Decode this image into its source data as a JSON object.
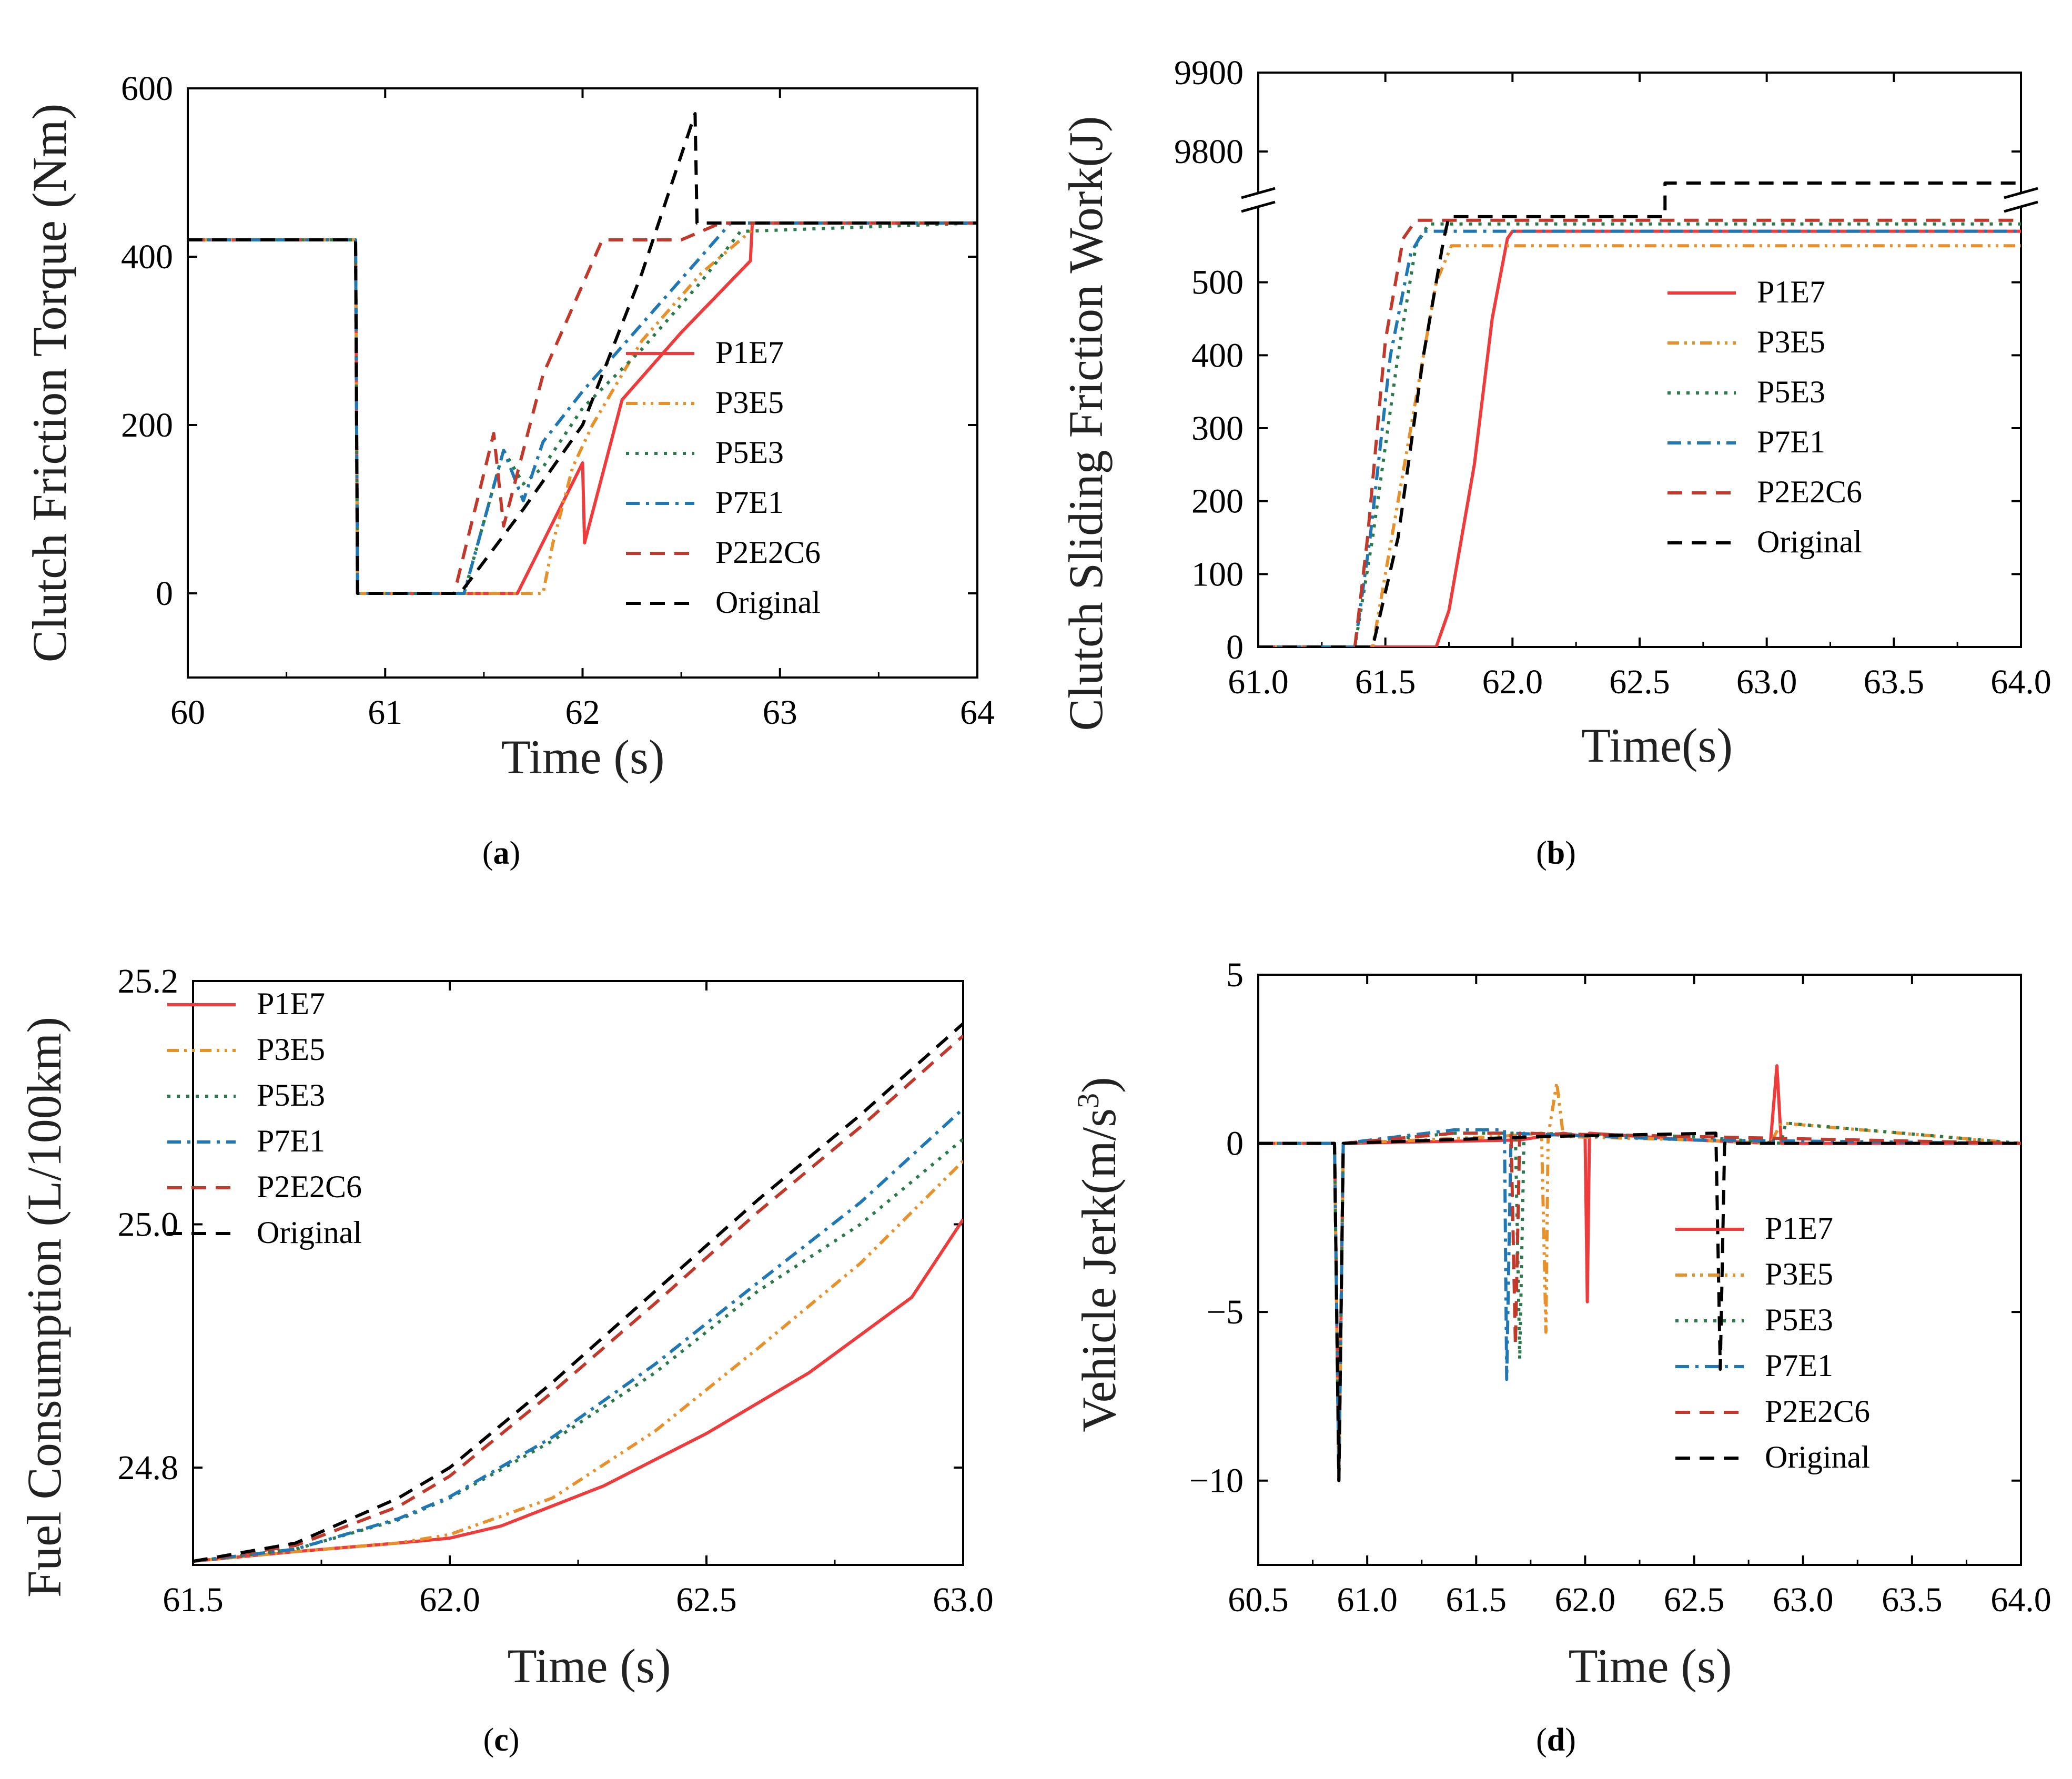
{
  "colors": {
    "P1E7": "#ee3b3b",
    "P3E5": "#e8902a",
    "P5E3": "#2a7a4a",
    "P7E1": "#1f78b4",
    "P2E2C6": "#c0392b",
    "Original": "#000000"
  },
  "chart_data": [
    {
      "id": "a",
      "type": "line",
      "panel_label": "a",
      "xlabel": "Time (s)",
      "ylabel": "Clutch Friction Torque (Nm)",
      "xlim": [
        60,
        64
      ],
      "ylim": [
        -100,
        600
      ],
      "xticks": [
        60,
        61,
        62,
        63,
        64
      ],
      "xtick_labels": [
        "60",
        "61",
        "62",
        "63",
        "64"
      ],
      "yticks": [
        0,
        200,
        400,
        600
      ],
      "ytick_labels": [
        "0",
        "200",
        "400",
        "600"
      ],
      "legend_position": "center-right",
      "series": [
        {
          "name": "P1E7",
          "dash": "solid",
          "x": [
            60,
            60.85,
            60.86,
            61.67,
            62.0,
            62.01,
            62.2,
            62.5,
            62.85,
            62.86,
            64
          ],
          "y": [
            420,
            420,
            0,
            0,
            155,
            60,
            230,
            310,
            395,
            440,
            440
          ]
        },
        {
          "name": "P3E5",
          "dash": "dashdotdot",
          "x": [
            60,
            60.85,
            60.86,
            61.8,
            61.85,
            61.95,
            62.05,
            62.3,
            62.6,
            62.85,
            62.86,
            64
          ],
          "y": [
            420,
            420,
            0,
            0,
            60,
            150,
            200,
            300,
            380,
            430,
            440,
            440
          ]
        },
        {
          "name": "P5E3",
          "dash": "dot",
          "x": [
            60,
            60.85,
            60.86,
            61.4,
            61.6,
            61.7,
            61.8,
            62.0,
            62.3,
            62.6,
            62.8,
            64
          ],
          "y": [
            420,
            420,
            0,
            0,
            170,
            130,
            150,
            220,
            290,
            370,
            430,
            440
          ]
        },
        {
          "name": "P7E1",
          "dash": "dashdot",
          "x": [
            60,
            60.85,
            60.86,
            61.4,
            61.6,
            61.7,
            61.8,
            62.0,
            62.3,
            62.6,
            62.75,
            64
          ],
          "y": [
            420,
            420,
            0,
            0,
            170,
            110,
            180,
            240,
            320,
            400,
            440,
            440
          ]
        },
        {
          "name": "P2E2C6",
          "dash": "dash",
          "x": [
            60,
            60.85,
            60.86,
            61.35,
            61.55,
            61.6,
            61.8,
            62.1,
            62.5,
            62.7,
            64
          ],
          "y": [
            420,
            420,
            0,
            0,
            190,
            80,
            260,
            420,
            420,
            440,
            440
          ]
        },
        {
          "name": "Original",
          "dash": "dash",
          "x": [
            60,
            60.85,
            60.86,
            61.38,
            61.7,
            62.0,
            62.3,
            62.57,
            62.58,
            62.62,
            64
          ],
          "y": [
            420,
            420,
            0,
            0,
            100,
            200,
            380,
            570,
            440,
            440,
            440
          ]
        }
      ]
    },
    {
      "id": "b",
      "type": "line",
      "panel_label": "b",
      "xlabel": "Time(s)",
      "ylabel": "Clutch Sliding Friction Work(J)",
      "xlim": [
        61.0,
        64.0
      ],
      "ylim": [
        0,
        9900
      ],
      "axis_break": {
        "lower_range": [
          0,
          600
        ],
        "upper_range": [
          9750,
          9900
        ]
      },
      "xticks": [
        61.0,
        61.5,
        62.0,
        62.5,
        63.0,
        63.5,
        64.0
      ],
      "xtick_labels": [
        "61.0",
        "61.5",
        "62.0",
        "62.5",
        "63.0",
        "63.5",
        "64.0"
      ],
      "yticks": [
        0,
        100,
        200,
        300,
        400,
        500,
        9800,
        9900
      ],
      "ytick_labels": [
        "0",
        "100",
        "200",
        "300",
        "400",
        "500",
        "9800",
        "9900"
      ],
      "legend_position": "center-right",
      "series": [
        {
          "name": "P1E7",
          "dash": "solid",
          "x": [
            61.0,
            61.7,
            61.75,
            61.85,
            61.92,
            61.98,
            62.0,
            64.0
          ],
          "y": [
            0,
            0,
            50,
            250,
            450,
            560,
            570,
            570
          ]
        },
        {
          "name": "P3E5",
          "dash": "dashdotdot",
          "x": [
            61.0,
            61.45,
            61.5,
            61.6,
            61.7,
            61.76,
            64.0
          ],
          "y": [
            0,
            0,
            100,
            300,
            500,
            550,
            550
          ]
        },
        {
          "name": "P5E3",
          "dash": "dot",
          "x": [
            61.0,
            61.38,
            61.45,
            61.55,
            61.62,
            61.67,
            64.0
          ],
          "y": [
            0,
            0,
            150,
            400,
            550,
            580,
            580
          ]
        },
        {
          "name": "P7E1",
          "dash": "dashdot",
          "x": [
            61.0,
            61.38,
            61.44,
            61.52,
            61.6,
            61.65,
            64.0
          ],
          "y": [
            0,
            0,
            150,
            400,
            540,
            570,
            570
          ]
        },
        {
          "name": "P2E2C6",
          "dash": "dash",
          "x": [
            61.0,
            61.38,
            61.43,
            61.5,
            61.57,
            61.62,
            64.0
          ],
          "y": [
            0,
            0,
            150,
            420,
            560,
            585,
            585
          ]
        },
        {
          "name": "Original",
          "dash": "dash",
          "x": [
            61.0,
            61.45,
            61.55,
            61.65,
            61.73,
            61.75,
            62.6,
            62.6,
            64.0
          ],
          "y": [
            0,
            0,
            150,
            400,
            560,
            590,
            590,
            9760,
            9760
          ]
        }
      ]
    },
    {
      "id": "c",
      "type": "line",
      "panel_label": "c",
      "xlabel": "Time (s)",
      "ylabel": "Fuel Consumption (L/100km)",
      "xlim": [
        61.5,
        63.0
      ],
      "ylim": [
        24.72,
        25.2
      ],
      "xticks": [
        61.5,
        62.0,
        62.5,
        63.0
      ],
      "xtick_labels": [
        "61.5",
        "62.0",
        "62.5",
        "63.0"
      ],
      "yticks": [
        24.8,
        25.0,
        25.2
      ],
      "ytick_labels": [
        "24.8",
        "25.0",
        "25.2"
      ],
      "legend_position": "top-left",
      "series": [
        {
          "name": "P1E7",
          "dash": "solid",
          "x": [
            61.5,
            61.7,
            61.9,
            62.0,
            62.1,
            62.3,
            62.5,
            62.7,
            62.9,
            63.0
          ],
          "y": [
            24.723,
            24.731,
            24.738,
            24.742,
            24.752,
            24.785,
            24.828,
            24.878,
            24.94,
            25.004
          ]
        },
        {
          "name": "P3E5",
          "dash": "dashdotdot",
          "x": [
            61.5,
            61.7,
            61.9,
            62.0,
            62.2,
            62.4,
            62.6,
            62.8,
            63.0
          ],
          "y": [
            24.723,
            24.731,
            24.738,
            24.745,
            24.775,
            24.83,
            24.898,
            24.968,
            25.052
          ]
        },
        {
          "name": "P5E3",
          "dash": "dot",
          "x": [
            61.5,
            61.7,
            61.9,
            62.0,
            62.2,
            62.4,
            62.6,
            62.8,
            63.0
          ],
          "y": [
            24.723,
            24.733,
            24.757,
            24.775,
            24.822,
            24.878,
            24.945,
            25.0,
            25.07
          ]
        },
        {
          "name": "P7E1",
          "dash": "dashdot",
          "x": [
            61.5,
            61.7,
            61.9,
            62.0,
            62.2,
            62.4,
            62.6,
            62.8,
            63.0
          ],
          "y": [
            24.723,
            24.733,
            24.758,
            24.776,
            24.825,
            24.885,
            24.952,
            25.018,
            25.095
          ]
        },
        {
          "name": "P2E2C6",
          "dash": "dash",
          "x": [
            61.5,
            61.7,
            61.9,
            62.0,
            62.2,
            62.4,
            62.6,
            62.8,
            63.0
          ],
          "y": [
            24.723,
            24.736,
            24.768,
            24.793,
            24.862,
            24.935,
            25.01,
            25.08,
            25.155
          ]
        },
        {
          "name": "Original",
          "dash": "dash",
          "x": [
            61.5,
            61.7,
            61.9,
            62.0,
            62.2,
            62.4,
            62.6,
            62.8,
            63.0
          ],
          "y": [
            24.723,
            24.738,
            24.775,
            24.8,
            24.87,
            24.945,
            25.02,
            25.09,
            25.165
          ]
        }
      ]
    },
    {
      "id": "d",
      "type": "line",
      "panel_label": "d",
      "xlabel": "Time (s)",
      "ylabel": "Vehicle Jerk(m/s",
      "ylabel_superscript": "3",
      "ylabel_close": ")",
      "xlim": [
        60.5,
        64.0
      ],
      "ylim": [
        -12.5,
        5
      ],
      "xticks": [
        60.5,
        61.0,
        61.5,
        62.0,
        62.5,
        63.0,
        63.5,
        64.0
      ],
      "xtick_labels": [
        "60.5",
        "61.0",
        "61.5",
        "62.0",
        "62.5",
        "63.0",
        "63.5",
        "64.0"
      ],
      "yticks": [
        -10,
        -5,
        0,
        5
      ],
      "ytick_labels": [
        "−10",
        "−5",
        "0",
        "5"
      ],
      "legend_position": "bottom-right",
      "series": [
        {
          "name": "P1E7",
          "dash": "solid",
          "x": [
            60.5,
            60.85,
            60.87,
            60.89,
            61.7,
            61.9,
            62.0,
            62.01,
            62.02,
            62.5,
            62.85,
            62.88,
            62.9,
            64.0
          ],
          "y": [
            0,
            0,
            -10,
            0,
            0.1,
            0.3,
            0.2,
            -4.7,
            0.3,
            0.1,
            0,
            2.3,
            0,
            0
          ]
        },
        {
          "name": "P3E5",
          "dash": "dashdotdot",
          "x": [
            60.5,
            60.85,
            60.87,
            60.89,
            61.6,
            61.8,
            61.82,
            61.83,
            61.87,
            61.9,
            62.5,
            62.85,
            62.9,
            64.0
          ],
          "y": [
            0,
            0,
            -10,
            0,
            0.2,
            0.3,
            -5.6,
            0.2,
            1.8,
            0.2,
            0.1,
            0,
            0.6,
            0
          ]
        },
        {
          "name": "P5E3",
          "dash": "dot",
          "x": [
            60.5,
            60.85,
            60.87,
            60.89,
            61.4,
            61.68,
            61.7,
            61.72,
            62.5,
            62.9,
            62.92,
            64.0
          ],
          "y": [
            0,
            0,
            -10,
            0,
            0.3,
            0.3,
            -6.4,
            0.3,
            0.2,
            0,
            0.6,
            0
          ]
        },
        {
          "name": "P7E1",
          "dash": "dashdot",
          "x": [
            60.5,
            60.85,
            60.87,
            60.89,
            61.4,
            61.63,
            61.64,
            61.66,
            62.5,
            64.0
          ],
          "y": [
            0,
            0,
            -10,
            0,
            0.4,
            0.4,
            -7.0,
            0.3,
            0.1,
            0
          ]
        },
        {
          "name": "P2E2C6",
          "dash": "dash",
          "x": [
            60.5,
            60.85,
            60.87,
            60.89,
            61.4,
            61.66,
            61.68,
            61.7,
            62.5,
            64.0
          ],
          "y": [
            0,
            0,
            -10,
            0,
            0.3,
            0.3,
            -6.0,
            0.3,
            0.2,
            0
          ]
        },
        {
          "name": "Original",
          "dash": "dash",
          "x": [
            60.5,
            60.85,
            60.87,
            60.89,
            61.8,
            62.6,
            62.62,
            62.64,
            64.0
          ],
          "y": [
            0,
            0,
            -10,
            0,
            0.2,
            0.3,
            -6.7,
            0,
            0
          ]
        }
      ]
    }
  ]
}
